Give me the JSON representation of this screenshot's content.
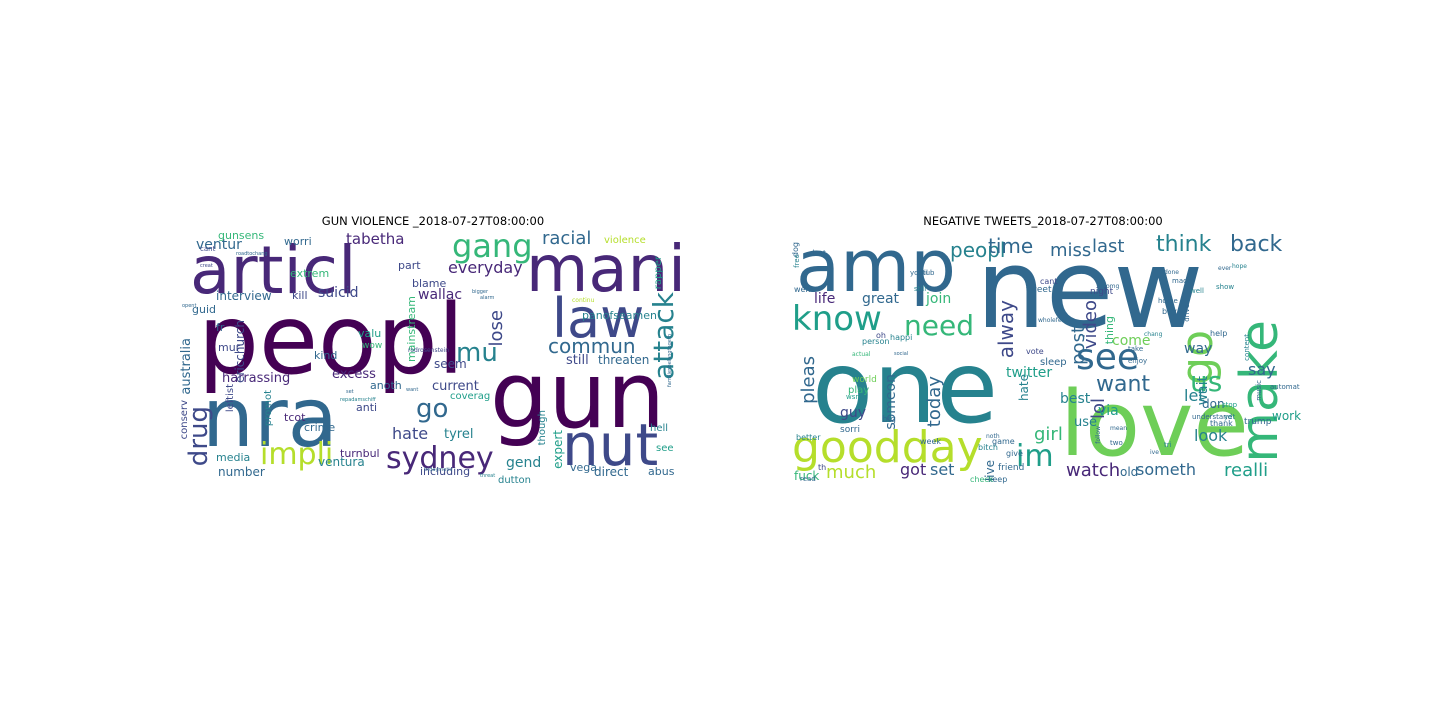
{
  "figure": {
    "left_title": "GUN VIOLENCE _2018-07-27T08:00:00",
    "right_title": "NEGATIVE TWEETS_2018-07-27T08:00:00"
  },
  "palette": [
    "#440154",
    "#482878",
    "#3e4989",
    "#31688e",
    "#26828e",
    "#1f9e89",
    "#35b779",
    "#6ece58",
    "#b5de2b",
    "#fde725"
  ],
  "left_cloud": {
    "words": [
      {
        "t": "peopl",
        "c": 0
      },
      {
        "t": "articl",
        "c": 1
      },
      {
        "t": "mani",
        "c": 1
      },
      {
        "t": "nra",
        "c": 3
      },
      {
        "t": "gun",
        "c": 0
      },
      {
        "t": "law",
        "c": 2
      },
      {
        "t": "nut",
        "c": 2
      },
      {
        "t": "attack",
        "c": 4
      },
      {
        "t": "gang",
        "c": 6
      },
      {
        "t": "sydney",
        "c": 1
      },
      {
        "t": "impli",
        "c": 8
      },
      {
        "t": "drug",
        "c": 2
      },
      {
        "t": "mu",
        "c": 4
      },
      {
        "t": "go",
        "c": 3
      },
      {
        "t": "commun",
        "c": 3
      },
      {
        "t": "racial",
        "c": 3
      },
      {
        "t": "everyday",
        "c": 1
      },
      {
        "t": "lose",
        "c": 2
      },
      {
        "t": "hate",
        "c": 2
      },
      {
        "t": "tabetha",
        "c": 1
      },
      {
        "t": "ventur",
        "c": 3
      },
      {
        "t": "interview",
        "c": 3
      },
      {
        "t": "suicid",
        "c": 2
      },
      {
        "t": "wallac",
        "c": 1
      },
      {
        "t": "harrassing",
        "c": 1
      },
      {
        "t": "excess",
        "c": 1
      },
      {
        "t": "current",
        "c": 2
      },
      {
        "t": "still",
        "c": 2
      },
      {
        "t": "threaten",
        "c": 3
      },
      {
        "t": "panofseamen",
        "c": 4
      },
      {
        "t": "australia",
        "c": 3
      },
      {
        "t": "ericchurch",
        "c": 2
      },
      {
        "t": "gend",
        "c": 4
      },
      {
        "t": "tyrel",
        "c": 4
      },
      {
        "t": "expert",
        "c": 5
      },
      {
        "t": "ventura",
        "c": 4
      },
      {
        "t": "number",
        "c": 3
      },
      {
        "t": "including",
        "c": 2
      },
      {
        "t": "direct",
        "c": 3
      },
      {
        "t": "abus",
        "c": 3
      },
      {
        "t": "vega",
        "c": 3
      },
      {
        "t": "turnbul",
        "c": 1
      },
      {
        "t": "media",
        "c": 4
      },
      {
        "t": "crime",
        "c": 3
      },
      {
        "t": "tcot",
        "c": 1
      },
      {
        "t": "anti",
        "c": 2
      },
      {
        "t": "anoth",
        "c": 3
      },
      {
        "t": "seem",
        "c": 2
      },
      {
        "t": "kind",
        "c": 3
      },
      {
        "t": "valu",
        "c": 5
      },
      {
        "t": "mainstream",
        "c": 6
      },
      {
        "t": "coverag",
        "c": 5
      },
      {
        "t": "though",
        "c": 4
      },
      {
        "t": "dutton",
        "c": 4
      },
      {
        "t": "hell",
        "c": 4
      },
      {
        "t": "see",
        "c": 5
      },
      {
        "t": "blame",
        "c": 2
      },
      {
        "t": "part",
        "c": 2
      },
      {
        "t": "worri",
        "c": 3
      },
      {
        "t": "kill",
        "c": 2
      },
      {
        "t": "guid",
        "c": 3
      },
      {
        "t": "fr",
        "c": 3
      },
      {
        "t": "mur",
        "c": 2
      },
      {
        "t": "extrem",
        "c": 6
      },
      {
        "t": "gunsens",
        "c": 6
      },
      {
        "t": "violence",
        "c": 8
      },
      {
        "t": "rapper",
        "c": 5
      },
      {
        "t": "conserv",
        "c": 2
      },
      {
        "t": "leftist",
        "c": 2
      },
      {
        "t": "promot",
        "c": 4
      },
      {
        "t": "wow",
        "c": 6
      },
      {
        "t": "cant",
        "c": 2
      },
      {
        "t": "continu",
        "c": 8
      },
      {
        "t": "familiesbelongtogeth",
        "c": 3
      },
      {
        "t": "fridaymotiv",
        "c": 3
      },
      {
        "t": "rodrosenstein",
        "c": 2
      },
      {
        "t": "repadamschiff",
        "c": 4
      },
      {
        "t": "alarm",
        "c": 3
      },
      {
        "t": "bigger",
        "c": 3
      },
      {
        "t": "roadtochang",
        "c": 3
      },
      {
        "t": "creat",
        "c": 2
      },
      {
        "t": "opent",
        "c": 3
      },
      {
        "t": "want",
        "c": 3
      },
      {
        "t": "set",
        "c": 3
      },
      {
        "t": "threat",
        "c": 4
      }
    ]
  },
  "right_cloud": {
    "words": [
      {
        "t": "new",
        "c": 3
      },
      {
        "t": "one",
        "c": 4
      },
      {
        "t": "amp",
        "c": 3
      },
      {
        "t": "love",
        "c": 7
      },
      {
        "t": "goodday",
        "c": 8
      },
      {
        "t": "make",
        "c": 6
      },
      {
        "t": "go",
        "c": 7
      },
      {
        "t": "know",
        "c": 5
      },
      {
        "t": "see",
        "c": 3
      },
      {
        "t": "im",
        "c": 5
      },
      {
        "t": "need",
        "c": 6
      },
      {
        "t": "us",
        "c": 6
      },
      {
        "t": "want",
        "c": 3
      },
      {
        "t": "think",
        "c": 4
      },
      {
        "t": "back",
        "c": 3
      },
      {
        "t": "peopl",
        "c": 4
      },
      {
        "t": "time",
        "c": 3
      },
      {
        "t": "miss",
        "c": 3
      },
      {
        "t": "last",
        "c": 3
      },
      {
        "t": "alway",
        "c": 2
      },
      {
        "t": "video",
        "c": 2
      },
      {
        "t": "post",
        "c": 3
      },
      {
        "t": "today",
        "c": 3
      },
      {
        "t": "pleas",
        "c": 3
      },
      {
        "t": "watch",
        "c": 1
      },
      {
        "t": "someth",
        "c": 3
      },
      {
        "t": "realli",
        "c": 5
      },
      {
        "t": "much",
        "c": 8
      },
      {
        "t": "got",
        "c": 1
      },
      {
        "t": "set",
        "c": 3
      },
      {
        "t": "girl",
        "c": 6
      },
      {
        "t": "lol",
        "c": 2
      },
      {
        "t": "look",
        "c": 4
      },
      {
        "t": "say",
        "c": 3
      },
      {
        "t": "let",
        "c": 4
      },
      {
        "t": "way",
        "c": 3
      },
      {
        "t": "come",
        "c": 7
      },
      {
        "t": "best",
        "c": 4
      },
      {
        "t": "twitter",
        "c": 5
      },
      {
        "t": "life",
        "c": 1
      },
      {
        "t": "great",
        "c": 3
      },
      {
        "t": "join",
        "c": 6
      },
      {
        "t": "someon",
        "c": 3
      },
      {
        "t": "guy",
        "c": 2
      },
      {
        "t": "fuck",
        "c": 6
      },
      {
        "t": "via",
        "c": 5
      },
      {
        "t": "wait",
        "c": 4
      },
      {
        "t": "use",
        "c": 4
      },
      {
        "t": "old",
        "c": 3
      },
      {
        "t": "live",
        "c": 3
      },
      {
        "t": "hate",
        "c": 4
      },
      {
        "t": "thing",
        "c": 6
      },
      {
        "t": "don",
        "c": 3
      },
      {
        "t": "work",
        "c": 5
      },
      {
        "t": "trump",
        "c": 3
      },
      {
        "t": "tweet",
        "c": 3
      },
      {
        "t": "cant",
        "c": 2
      },
      {
        "t": "night",
        "c": 2
      },
      {
        "t": "play",
        "c": 6
      },
      {
        "t": "world",
        "c": 7
      },
      {
        "t": "sleep",
        "c": 3
      },
      {
        "t": "vote",
        "c": 2
      },
      {
        "t": "friend",
        "c": 3
      },
      {
        "t": "keep",
        "c": 3
      },
      {
        "t": "check",
        "c": 6
      },
      {
        "t": "game",
        "c": 3
      },
      {
        "t": "bitch",
        "c": 4
      },
      {
        "t": "give",
        "c": 3
      },
      {
        "t": "week",
        "c": 3
      },
      {
        "t": "sorri",
        "c": 3
      },
      {
        "t": "big",
        "c": 3
      },
      {
        "t": "better",
        "c": 4
      },
      {
        "t": "person",
        "c": 4
      },
      {
        "t": "happi",
        "c": 4
      },
      {
        "t": "music",
        "c": 3
      },
      {
        "t": "automat",
        "c": 3
      },
      {
        "t": "content",
        "c": 4
      },
      {
        "t": "understand",
        "c": 3
      },
      {
        "t": "thank",
        "c": 3
      },
      {
        "t": "help",
        "c": 3
      },
      {
        "t": "home",
        "c": 3
      },
      {
        "t": "stop",
        "c": 5
      },
      {
        "t": "yet",
        "c": 4
      },
      {
        "t": "two",
        "c": 3
      },
      {
        "t": "made",
        "c": 3
      },
      {
        "t": "well",
        "c": 4
      },
      {
        "t": "show",
        "c": 4
      },
      {
        "t": "buy",
        "c": 3
      },
      {
        "t": "enjoy",
        "c": 3
      },
      {
        "t": "drive",
        "c": 3
      },
      {
        "t": "take",
        "c": 3
      },
      {
        "t": "follow",
        "c": 3
      },
      {
        "t": "read",
        "c": 3
      },
      {
        "t": "th",
        "c": 2
      },
      {
        "t": "went",
        "c": 3
      },
      {
        "t": "dog",
        "c": 3
      },
      {
        "t": "free",
        "c": 4
      },
      {
        "t": "dont",
        "c": 3
      },
      {
        "t": "oh",
        "c": 2
      },
      {
        "t": "youtub",
        "c": 3
      },
      {
        "t": "still",
        "c": 4
      },
      {
        "t": "il",
        "c": 3
      },
      {
        "t": "omg",
        "c": 3
      },
      {
        "t": "wholefeel",
        "c": 3
      },
      {
        "t": "done",
        "c": 3
      },
      {
        "t": "chang",
        "c": 4
      },
      {
        "t": "hope",
        "c": 4
      },
      {
        "t": "ever",
        "c": 3
      },
      {
        "t": "tri",
        "c": 4
      },
      {
        "t": "ive",
        "c": 3
      },
      {
        "t": "mean",
        "c": 3
      },
      {
        "t": "social",
        "c": 3
      },
      {
        "t": "actual",
        "c": 6
      },
      {
        "t": "wsn",
        "c": 5
      },
      {
        "t": "noth",
        "c": 3
      }
    ]
  }
}
